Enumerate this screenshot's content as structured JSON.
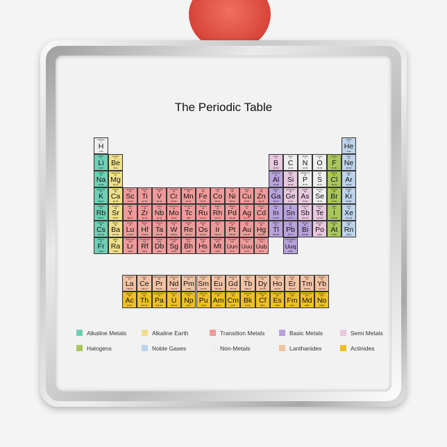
{
  "title": "The Periodic Table",
  "colors": {
    "am": "#6ecfb5",
    "ae": "#efdf8c",
    "tm": "#ef9a9a",
    "bm": "#b8a2dc",
    "sm": "#e8c8df",
    "hal": "#a9c65c",
    "ng": "#bdd3ea",
    "nm": "#efefef",
    "la": "#f1c2a3",
    "ac": "#eec026"
  },
  "legend": [
    {
      "label": "Alkaline Metals",
      "cat": "am"
    },
    {
      "label": "Alkaline Earth",
      "cat": "ae"
    },
    {
      "label": "Transition Metals",
      "cat": "tm"
    },
    {
      "label": "Basic Metals",
      "cat": "bm"
    },
    {
      "label": "Semi Metals",
      "cat": "sm"
    },
    {
      "label": "Halogens",
      "cat": "hal"
    },
    {
      "label": "Noble Gases",
      "cat": "ng"
    },
    {
      "label": "Non-Metals",
      "cat": "nm"
    },
    {
      "label": "Lanthanides",
      "cat": "la"
    },
    {
      "label": "Actinides",
      "cat": "ac"
    }
  ],
  "main_table": [
    [
      "H",
      1,
      "hydrogen",
      "1.00",
      "nm",
      1,
      1
    ],
    [
      "He",
      2,
      "helium",
      "4.00",
      "ng",
      1,
      18
    ],
    [
      "Li",
      3,
      "lithium",
      "6.94",
      "am",
      2,
      1
    ],
    [
      "Be",
      4,
      "beryllium",
      "9.01",
      "ae",
      2,
      2
    ],
    [
      "B",
      5,
      "boron",
      "10.81",
      "sm",
      2,
      13
    ],
    [
      "C",
      6,
      "carbon",
      "12.01",
      "nm",
      2,
      14
    ],
    [
      "N",
      7,
      "nitrogen",
      "14.01",
      "nm",
      2,
      15
    ],
    [
      "O",
      8,
      "oxygen",
      "16.00",
      "nm",
      2,
      16
    ],
    [
      "F",
      9,
      "fluorine",
      "19.00",
      "hal",
      2,
      17
    ],
    [
      "Ne",
      10,
      "neon",
      "20.18",
      "ng",
      2,
      18
    ],
    [
      "Na",
      11,
      "sodium",
      "22.99",
      "am",
      3,
      1
    ],
    [
      "Mg",
      12,
      "magnesium",
      "24.31",
      "ae",
      3,
      2
    ],
    [
      "Al",
      13,
      "aluminium",
      "26.98",
      "bm",
      3,
      13
    ],
    [
      "Si",
      14,
      "silicon",
      "28.09",
      "sm",
      3,
      14
    ],
    [
      "P",
      15,
      "phosphorus",
      "30.97",
      "nm",
      3,
      15
    ],
    [
      "S",
      16,
      "sulfur",
      "32.07",
      "nm",
      3,
      16
    ],
    [
      "Cl",
      17,
      "chlorine",
      "35.45",
      "hal",
      3,
      17
    ],
    [
      "Ar",
      18,
      "argon",
      "39.95",
      "ng",
      3,
      18
    ],
    [
      "K",
      19,
      "potassium",
      "39.10",
      "am",
      4,
      1
    ],
    [
      "Ca",
      20,
      "calcium",
      "40.08",
      "ae",
      4,
      2
    ],
    [
      "Sc",
      21,
      "scandium",
      "44.96",
      "tm",
      4,
      3
    ],
    [
      "Ti",
      22,
      "titanium",
      "47.87",
      "tm",
      4,
      4
    ],
    [
      "V",
      23,
      "vanadium",
      "50.94",
      "tm",
      4,
      5
    ],
    [
      "Cr",
      24,
      "chromium",
      "52.00",
      "tm",
      4,
      6
    ],
    [
      "Mn",
      25,
      "manganese",
      "54.94",
      "tm",
      4,
      7
    ],
    [
      "Fe",
      26,
      "iron",
      "55.85",
      "tm",
      4,
      8
    ],
    [
      "Co",
      27,
      "cobalt",
      "58.93",
      "tm",
      4,
      9
    ],
    [
      "Ni",
      28,
      "nickel",
      "58.69",
      "tm",
      4,
      10
    ],
    [
      "Cu",
      29,
      "copper",
      "63.55",
      "tm",
      4,
      11
    ],
    [
      "Zn",
      30,
      "zinc",
      "65.39",
      "tm",
      4,
      12
    ],
    [
      "Ga",
      31,
      "gallium",
      "69.72",
      "bm",
      4,
      13
    ],
    [
      "Ge",
      32,
      "germanium",
      "72.61",
      "sm",
      4,
      14
    ],
    [
      "As",
      33,
      "arsenic",
      "74.92",
      "sm",
      4,
      15
    ],
    [
      "Se",
      34,
      "selenium",
      "78.96",
      "nm",
      4,
      16
    ],
    [
      "Br",
      35,
      "bromine",
      "79.90",
      "hal",
      4,
      17
    ],
    [
      "Kr",
      36,
      "krypton",
      "83.80",
      "ng",
      4,
      18
    ],
    [
      "Rb",
      37,
      "rubidium",
      "85.47",
      "am",
      5,
      1
    ],
    [
      "Sr",
      38,
      "strontium",
      "87.62",
      "ae",
      5,
      2
    ],
    [
      "Y",
      39,
      "yttrium",
      "88.91",
      "tm",
      5,
      3
    ],
    [
      "Zr",
      40,
      "zirconium",
      "91.22",
      "tm",
      5,
      4
    ],
    [
      "Nb",
      41,
      "niobium",
      "92.91",
      "tm",
      5,
      5
    ],
    [
      "Mo",
      42,
      "molybdenum",
      "95.94",
      "tm",
      5,
      6
    ],
    [
      "Tc",
      43,
      "technetium",
      "(98)",
      "tm",
      5,
      7
    ],
    [
      "Ru",
      44,
      "ruthenium",
      "101.07",
      "tm",
      5,
      8
    ],
    [
      "Rh",
      45,
      "rhodium",
      "102.91",
      "tm",
      5,
      9
    ],
    [
      "Pd",
      46,
      "palladium",
      "106.42",
      "tm",
      5,
      10
    ],
    [
      "Ag",
      47,
      "silver",
      "107.87",
      "tm",
      5,
      11
    ],
    [
      "Cd",
      48,
      "cadmium",
      "112.41",
      "tm",
      5,
      12
    ],
    [
      "In",
      49,
      "indium",
      "114.82",
      "bm",
      5,
      13
    ],
    [
      "Sn",
      50,
      "tin",
      "118.71",
      "bm",
      5,
      14
    ],
    [
      "Sb",
      51,
      "antimony",
      "121.76",
      "sm",
      5,
      15
    ],
    [
      "Te",
      52,
      "tellurium",
      "127.60",
      "sm",
      5,
      16
    ],
    [
      "I",
      53,
      "iodine",
      "126.90",
      "hal",
      5,
      17
    ],
    [
      "Xe",
      54,
      "xenon",
      "131.29",
      "ng",
      5,
      18
    ],
    [
      "Cs",
      55,
      "caesium",
      "132.91",
      "am",
      6,
      1
    ],
    [
      "Ba",
      56,
      "barium",
      "137.33",
      "ae",
      6,
      2
    ],
    [
      "Lu",
      71,
      "lutetium",
      "174.97",
      "tm",
      6,
      3
    ],
    [
      "Hf",
      72,
      "hafnium",
      "178.49",
      "tm",
      6,
      4
    ],
    [
      "Ta",
      73,
      "tantalum",
      "180.95",
      "tm",
      6,
      5
    ],
    [
      "W",
      74,
      "tungsten",
      "183.84",
      "tm",
      6,
      6
    ],
    [
      "Re",
      75,
      "rhenium",
      "186.21",
      "tm",
      6,
      7
    ],
    [
      "Os",
      76,
      "osmium",
      "190.23",
      "tm",
      6,
      8
    ],
    [
      "Ir",
      77,
      "iridium",
      "192.22",
      "tm",
      6,
      9
    ],
    [
      "Pt",
      78,
      "platinum",
      "195.08",
      "tm",
      6,
      10
    ],
    [
      "Au",
      79,
      "gold",
      "196.97",
      "tm",
      6,
      11
    ],
    [
      "Hg",
      80,
      "mercury",
      "200.59",
      "tm",
      6,
      12
    ],
    [
      "Tl",
      81,
      "thallium",
      "204.38",
      "bm",
      6,
      13
    ],
    [
      "Pb",
      82,
      "lead",
      "207.2",
      "bm",
      6,
      14
    ],
    [
      "Bi",
      83,
      "bismuth",
      "208.98",
      "bm",
      6,
      15
    ],
    [
      "Po",
      84,
      "polonium",
      "(209)",
      "sm",
      6,
      16
    ],
    [
      "At",
      85,
      "astatine",
      "(210)",
      "hal",
      6,
      17
    ],
    [
      "Rn",
      86,
      "radon",
      "(222)",
      "ng",
      6,
      18
    ],
    [
      "Fr",
      87,
      "francium",
      "(223)",
      "am",
      7,
      1
    ],
    [
      "Ra",
      88,
      "radium",
      "(226)",
      "ae",
      7,
      2
    ],
    [
      "Lr",
      103,
      "lawrencium",
      "(262)",
      "tm",
      7,
      3
    ],
    [
      "Rf",
      104,
      "rutherfordium",
      "(261)",
      "tm",
      7,
      4
    ],
    [
      "Db",
      105,
      "dubnium",
      "(262)",
      "tm",
      7,
      5
    ],
    [
      "Sg",
      106,
      "seaborgium",
      "(266)",
      "tm",
      7,
      6
    ],
    [
      "Bh",
      107,
      "bohrium",
      "(264)",
      "tm",
      7,
      7
    ],
    [
      "Hs",
      108,
      "hassium",
      "(269)",
      "tm",
      7,
      8
    ],
    [
      "Mt",
      109,
      "meitnerium",
      "(268)",
      "tm",
      7,
      9
    ],
    [
      "Uun",
      110,
      "ununnilium",
      "(271)",
      "tm",
      7,
      10
    ],
    [
      "Uuu",
      111,
      "unununium",
      "(272)",
      "tm",
      7,
      11
    ],
    [
      "Uub",
      112,
      "ununbium",
      "(277)",
      "tm",
      7,
      12
    ],
    [
      "Uuq",
      114,
      "ununquadium",
      "(285)",
      "bm",
      7,
      14
    ]
  ],
  "lanthanides": [
    [
      "La",
      57,
      "lanthanum",
      "138.91"
    ],
    [
      "Ce",
      58,
      "cerium",
      "140.12"
    ],
    [
      "Pr",
      59,
      "praseodymium",
      "140.91"
    ],
    [
      "Nd",
      60,
      "neodymium",
      "144.24"
    ],
    [
      "Pm",
      61,
      "promethium",
      "(145)"
    ],
    [
      "Sm",
      62,
      "samarium",
      "150.36"
    ],
    [
      "Eu",
      63,
      "europium",
      "151.96"
    ],
    [
      "Gd",
      64,
      "gadolinium",
      "157.25"
    ],
    [
      "Tb",
      65,
      "terbium",
      "158.93"
    ],
    [
      "Dy",
      66,
      "dysprosium",
      "162.50"
    ],
    [
      "Ho",
      67,
      "holmium",
      "164.93"
    ],
    [
      "Er",
      68,
      "erbium",
      "167.26"
    ],
    [
      "Tm",
      69,
      "thulium",
      "168.93"
    ],
    [
      "Yb",
      70,
      "ytterbium",
      "173.04"
    ]
  ],
  "actinides": [
    [
      "Ac",
      89,
      "actinium",
      "(227)"
    ],
    [
      "Th",
      90,
      "thorium",
      "232.04"
    ],
    [
      "Pa",
      91,
      "protactinium",
      "231.04"
    ],
    [
      "U",
      92,
      "uranium",
      "238.03"
    ],
    [
      "Np",
      93,
      "neptunium",
      "(237)"
    ],
    [
      "Pu",
      94,
      "plutonium",
      "(244)"
    ],
    [
      "Am",
      95,
      "americium",
      "(243)"
    ],
    [
      "Cm",
      96,
      "curium",
      "(247)"
    ],
    [
      "Bk",
      97,
      "berkelium",
      "(247)"
    ],
    [
      "Cf",
      98,
      "californium",
      "(251)"
    ],
    [
      "Es",
      99,
      "einsteinium",
      "(252)"
    ],
    [
      "Fm",
      100,
      "fermium",
      "(257)"
    ],
    [
      "Md",
      101,
      "mendelevium",
      "(258)"
    ],
    [
      "No",
      102,
      "nobelium",
      "(259)"
    ]
  ]
}
